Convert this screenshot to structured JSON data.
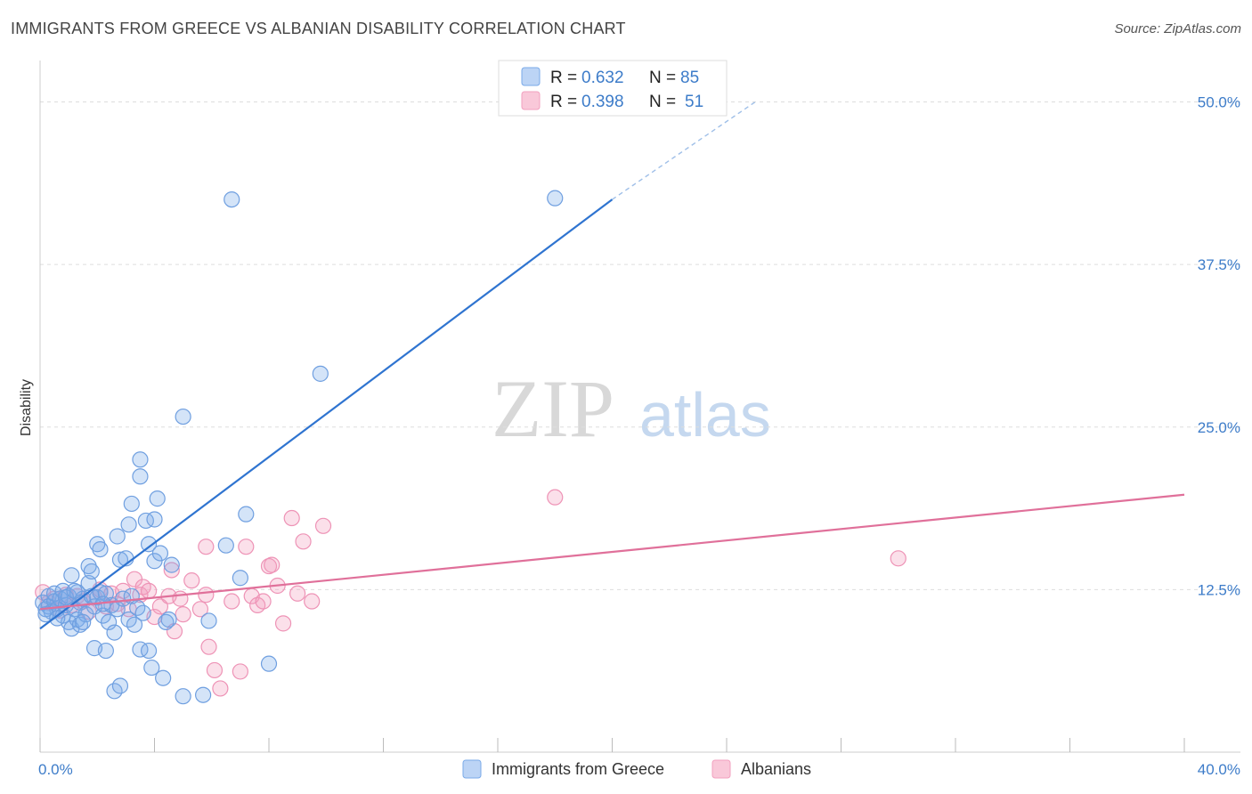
{
  "header": {
    "title": "IMMIGRANTS FROM GREECE VS ALBANIAN DISABILITY CORRELATION CHART",
    "source": "Source: ZipAtlas.com"
  },
  "watermark": {
    "zip": "ZIP",
    "atlas": "atlas"
  },
  "colors": {
    "blue": "#7aaae8",
    "blue_line": "#2f74d0",
    "pink": "#f2a0bf",
    "pink_line": "#e0709a",
    "grid": "#dddddd",
    "tick": "#3d7cc9"
  },
  "legend": {
    "rows": [
      {
        "r_label": "R = ",
        "r_value": "0.632",
        "n_label": "N = ",
        "n_value": "85"
      },
      {
        "r_label": "R = ",
        "r_value": "0.398",
        "n_label": "N = ",
        "n_value": "51"
      }
    ]
  },
  "chart_data": {
    "type": "scatter",
    "title": "IMMIGRANTS FROM GREECE VS ALBANIAN DISABILITY CORRELATION CHART",
    "xlabel": "",
    "ylabel": "Disability",
    "xlim": [
      0,
      40
    ],
    "ylim": [
      0,
      52.5
    ],
    "x_tick_labels": [
      "0.0%",
      "40.0%"
    ],
    "y_ticks": [
      12.5,
      25.0,
      37.5,
      50.0
    ],
    "y_tick_labels": [
      "12.5%",
      "25.0%",
      "37.5%",
      "50.0%"
    ],
    "legend_position": "top-center",
    "series": [
      {
        "name": "Immigrants from Greece",
        "color": "#7aaae8",
        "r": 0.632,
        "n": 85,
        "trend": {
          "x": [
            0,
            20
          ],
          "y": [
            9.5,
            42.5
          ],
          "dashed_to": [
            25,
            50
          ]
        },
        "points": [
          [
            0.1,
            11.5
          ],
          [
            0.2,
            11.0
          ],
          [
            0.3,
            12.0
          ],
          [
            0.3,
            11.2
          ],
          [
            0.4,
            10.8
          ],
          [
            0.5,
            11.6
          ],
          [
            0.5,
            12.2
          ],
          [
            0.6,
            11.0
          ],
          [
            0.7,
            11.8
          ],
          [
            0.8,
            10.5
          ],
          [
            0.8,
            12.4
          ],
          [
            0.9,
            11.3
          ],
          [
            1.0,
            10.0
          ],
          [
            1.0,
            12.0
          ],
          [
            1.1,
            9.5
          ],
          [
            1.1,
            13.6
          ],
          [
            1.2,
            11.0
          ],
          [
            1.3,
            12.3
          ],
          [
            1.3,
            10.2
          ],
          [
            1.4,
            11.5
          ],
          [
            1.4,
            9.8
          ],
          [
            1.5,
            11.8
          ],
          [
            1.6,
            10.6
          ],
          [
            1.7,
            14.3
          ],
          [
            1.7,
            13.0
          ],
          [
            1.8,
            13.9
          ],
          [
            1.8,
            12.0
          ],
          [
            1.9,
            11.2
          ],
          [
            1.9,
            8.0
          ],
          [
            2.0,
            16.0
          ],
          [
            2.0,
            11.9
          ],
          [
            2.1,
            15.6
          ],
          [
            2.1,
            12.3
          ],
          [
            2.2,
            10.5
          ],
          [
            2.3,
            12.2
          ],
          [
            2.3,
            7.8
          ],
          [
            2.4,
            10.0
          ],
          [
            2.5,
            11.3
          ],
          [
            2.6,
            9.2
          ],
          [
            2.6,
            4.7
          ],
          [
            2.7,
            16.6
          ],
          [
            2.7,
            11.0
          ],
          [
            2.8,
            14.8
          ],
          [
            2.8,
            5.1
          ],
          [
            2.9,
            11.8
          ],
          [
            3.0,
            14.9
          ],
          [
            3.1,
            10.2
          ],
          [
            3.1,
            17.5
          ],
          [
            3.2,
            12.0
          ],
          [
            3.2,
            19.1
          ],
          [
            3.3,
            9.8
          ],
          [
            3.4,
            11.1
          ],
          [
            3.5,
            7.9
          ],
          [
            3.5,
            22.5
          ],
          [
            3.5,
            21.2
          ],
          [
            3.6,
            10.7
          ],
          [
            3.7,
            17.8
          ],
          [
            3.8,
            16.0
          ],
          [
            3.8,
            7.8
          ],
          [
            3.9,
            6.5
          ],
          [
            4.0,
            17.9
          ],
          [
            4.0,
            14.7
          ],
          [
            4.1,
            19.5
          ],
          [
            4.2,
            15.3
          ],
          [
            4.3,
            5.7
          ],
          [
            4.4,
            10.0
          ],
          [
            4.5,
            10.2
          ],
          [
            4.6,
            14.4
          ],
          [
            5.0,
            4.3
          ],
          [
            5.0,
            25.8
          ],
          [
            5.7,
            4.4
          ],
          [
            5.9,
            10.1
          ],
          [
            6.5,
            15.9
          ],
          [
            7.0,
            13.4
          ],
          [
            7.2,
            18.3
          ],
          [
            8.0,
            6.8
          ],
          [
            9.8,
            29.1
          ],
          [
            6.7,
            42.5
          ],
          [
            18.0,
            42.6
          ],
          [
            0.2,
            10.6
          ],
          [
            0.6,
            10.3
          ],
          [
            1.5,
            10.0
          ],
          [
            2.2,
            11.4
          ],
          [
            0.9,
            11.9
          ],
          [
            1.2,
            12.4
          ]
        ]
      },
      {
        "name": "Albanians",
        "color": "#f2a0bf",
        "r": 0.398,
        "n": 51,
        "trend": {
          "x": [
            0,
            40
          ],
          "y": [
            11.0,
            19.8
          ]
        },
        "points": [
          [
            0.1,
            12.3
          ],
          [
            0.3,
            11.5
          ],
          [
            0.5,
            11.8
          ],
          [
            0.7,
            10.9
          ],
          [
            0.9,
            12.1
          ],
          [
            1.1,
            11.3
          ],
          [
            1.3,
            12.0
          ],
          [
            1.5,
            11.6
          ],
          [
            1.7,
            10.8
          ],
          [
            1.9,
            11.9
          ],
          [
            2.1,
            12.5
          ],
          [
            2.3,
            11.2
          ],
          [
            2.5,
            12.2
          ],
          [
            2.7,
            11.4
          ],
          [
            2.9,
            12.4
          ],
          [
            3.1,
            11.0
          ],
          [
            3.3,
            13.3
          ],
          [
            3.5,
            12.1
          ],
          [
            3.6,
            12.7
          ],
          [
            3.8,
            12.4
          ],
          [
            4.0,
            10.4
          ],
          [
            4.2,
            11.2
          ],
          [
            4.5,
            12.0
          ],
          [
            4.7,
            9.3
          ],
          [
            4.9,
            11.8
          ],
          [
            5.0,
            10.6
          ],
          [
            5.3,
            13.2
          ],
          [
            5.6,
            11.0
          ],
          [
            5.8,
            12.1
          ],
          [
            5.9,
            8.1
          ],
          [
            6.1,
            6.3
          ],
          [
            6.3,
            4.9
          ],
          [
            6.7,
            11.6
          ],
          [
            7.0,
            6.2
          ],
          [
            7.4,
            12.0
          ],
          [
            7.6,
            11.3
          ],
          [
            7.8,
            11.6
          ],
          [
            8.0,
            14.3
          ],
          [
            8.3,
            12.8
          ],
          [
            8.5,
            9.9
          ],
          [
            8.8,
            18.0
          ],
          [
            9.2,
            16.2
          ],
          [
            9.5,
            11.6
          ],
          [
            9.9,
            17.4
          ],
          [
            18.0,
            19.6
          ],
          [
            30.0,
            14.9
          ],
          [
            4.6,
            14.0
          ],
          [
            5.8,
            15.8
          ],
          [
            7.2,
            15.8
          ],
          [
            8.1,
            14.4
          ],
          [
            9.0,
            12.2
          ]
        ]
      }
    ]
  }
}
